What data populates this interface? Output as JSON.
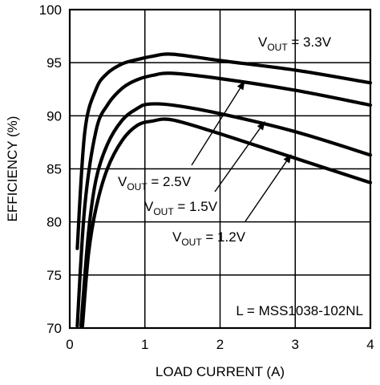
{
  "chart_data": {
    "type": "line",
    "xlabel": "LOAD CURRENT (A)",
    "ylabel": "EFFICIENCY (%)",
    "xlim": [
      0,
      4
    ],
    "ylim": [
      70,
      100
    ],
    "xticks": [
      0,
      1,
      2,
      3,
      4
    ],
    "yticks": [
      70,
      75,
      80,
      85,
      90,
      95,
      100
    ],
    "grid": true,
    "series": [
      {
        "name": "VOUT = 3.3V",
        "x": [
          0.1,
          0.2,
          0.35,
          0.5,
          0.7,
          0.9,
          1.1,
          1.37,
          2.0,
          3.0,
          4.0
        ],
        "y": [
          77.5,
          88.5,
          92.5,
          94.0,
          94.9,
          95.3,
          95.6,
          95.8,
          95.2,
          94.3,
          93.1
        ]
      },
      {
        "name": "VOUT = 2.5V",
        "x": [
          0.1,
          0.2,
          0.35,
          0.5,
          0.7,
          0.9,
          1.1,
          1.37,
          2.0,
          3.0,
          4.0
        ],
        "y": [
          70.2,
          81.5,
          88.6,
          91.0,
          92.6,
          93.4,
          93.8,
          94.0,
          93.5,
          92.4,
          91.0
        ]
      },
      {
        "name": "VOUT = 1.5V",
        "x": [
          0.15,
          0.25,
          0.35,
          0.5,
          0.7,
          0.9,
          1.05,
          1.37,
          2.0,
          3.0,
          4.0
        ],
        "y": [
          70.2,
          79.0,
          84.0,
          87.3,
          89.6,
          90.7,
          91.1,
          91.0,
          90.2,
          88.5,
          86.3
        ]
      },
      {
        "name": "VOUT = 1.2V",
        "x": [
          0.17,
          0.25,
          0.35,
          0.5,
          0.7,
          0.9,
          1.1,
          1.37,
          2.0,
          3.0,
          4.0
        ],
        "y": [
          70.2,
          77.0,
          81.3,
          85.0,
          87.7,
          89.1,
          89.5,
          89.6,
          88.3,
          86.0,
          83.7
        ]
      }
    ],
    "annotations": [
      {
        "pre": "V",
        "sub": "OUT",
        "post": " = 3.3V",
        "series": 0
      },
      {
        "pre": "V",
        "sub": "OUT",
        "post": " = 2.5V",
        "series": 1,
        "arrow_to": [
          2.33,
          93.3
        ]
      },
      {
        "pre": "V",
        "sub": "OUT",
        "post": " = 1.5V",
        "series": 2,
        "arrow_to": [
          2.6,
          89.5
        ]
      },
      {
        "pre": "V",
        "sub": "OUT",
        "post": " = 1.2V",
        "series": 3,
        "arrow_to": [
          2.95,
          86.4
        ]
      }
    ],
    "note": "L = MSS1038-102NL"
  }
}
